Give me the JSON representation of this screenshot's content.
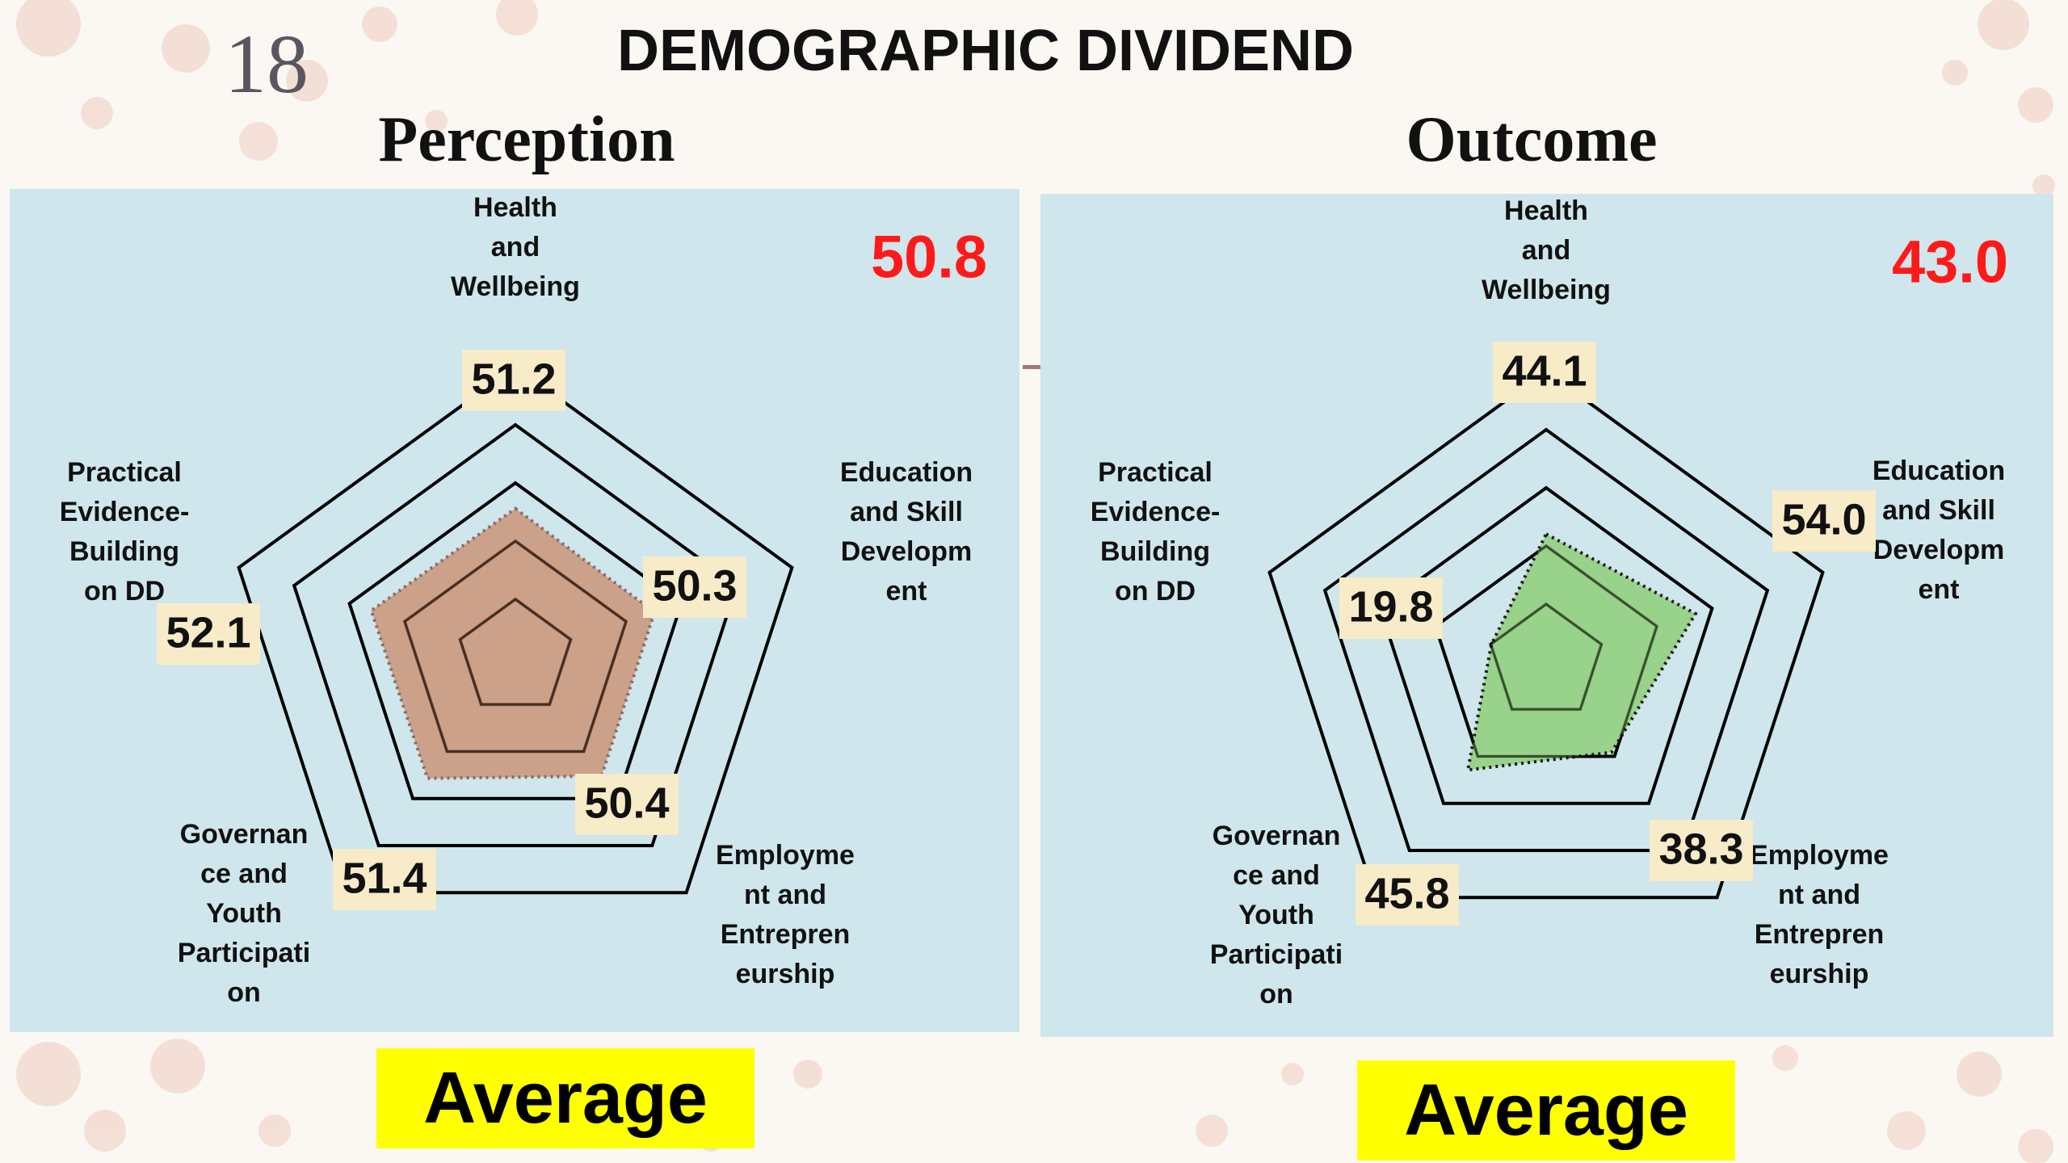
{
  "slide": {
    "number": "18",
    "title": "DEMOGRAPHIC DIVIDEND",
    "footer_label_left": "Average",
    "footer_label_right": "Average"
  },
  "colors": {
    "panel_bg": "#cfe6ec",
    "score_red": "#ff1a1a",
    "label_box": "#f7ebc8",
    "perception_fill": "#c98a6a",
    "outcome_fill": "#8fce7a",
    "average_bg": "#ffff00"
  },
  "chart_data": [
    {
      "type": "radar",
      "title": "Perception",
      "overall_score": "50.8",
      "axes": [
        [
          "Health",
          "and",
          "Wellbeing"
        ],
        [
          "Education",
          "and Skill",
          "Developm",
          "ent"
        ],
        [
          "Employme",
          "nt and",
          "Entrepren",
          "eurship"
        ],
        [
          "Governan",
          "ce and",
          "Youth",
          "Participati",
          "on"
        ],
        [
          "Practical",
          "Evidence-",
          "Building",
          "on DD"
        ]
      ],
      "values": [
        51.2,
        50.3,
        50.4,
        51.4,
        52.1
      ],
      "value_labels": [
        "51.2",
        "50.3",
        "50.4",
        "51.4",
        "52.1"
      ],
      "rlim": [
        0,
        100
      ]
    },
    {
      "type": "radar",
      "title": "Outcome",
      "overall_score": "43.0",
      "axes": [
        [
          "Health",
          "and",
          "Wellbeing"
        ],
        [
          "Education",
          "and Skill",
          "Developm",
          "ent"
        ],
        [
          "Employme",
          "nt and",
          "Entrepren",
          "eurship"
        ],
        [
          "Governan",
          "ce and",
          "Youth",
          "Participati",
          "on"
        ],
        [
          "Practical",
          "Evidence-",
          "Building",
          "on DD"
        ]
      ],
      "values": [
        44.1,
        54.0,
        38.3,
        45.8,
        19.8
      ],
      "value_labels": [
        "44.1",
        "54.0",
        "38.3",
        "45.8",
        "19.8"
      ],
      "rlim": [
        0,
        100
      ]
    }
  ]
}
